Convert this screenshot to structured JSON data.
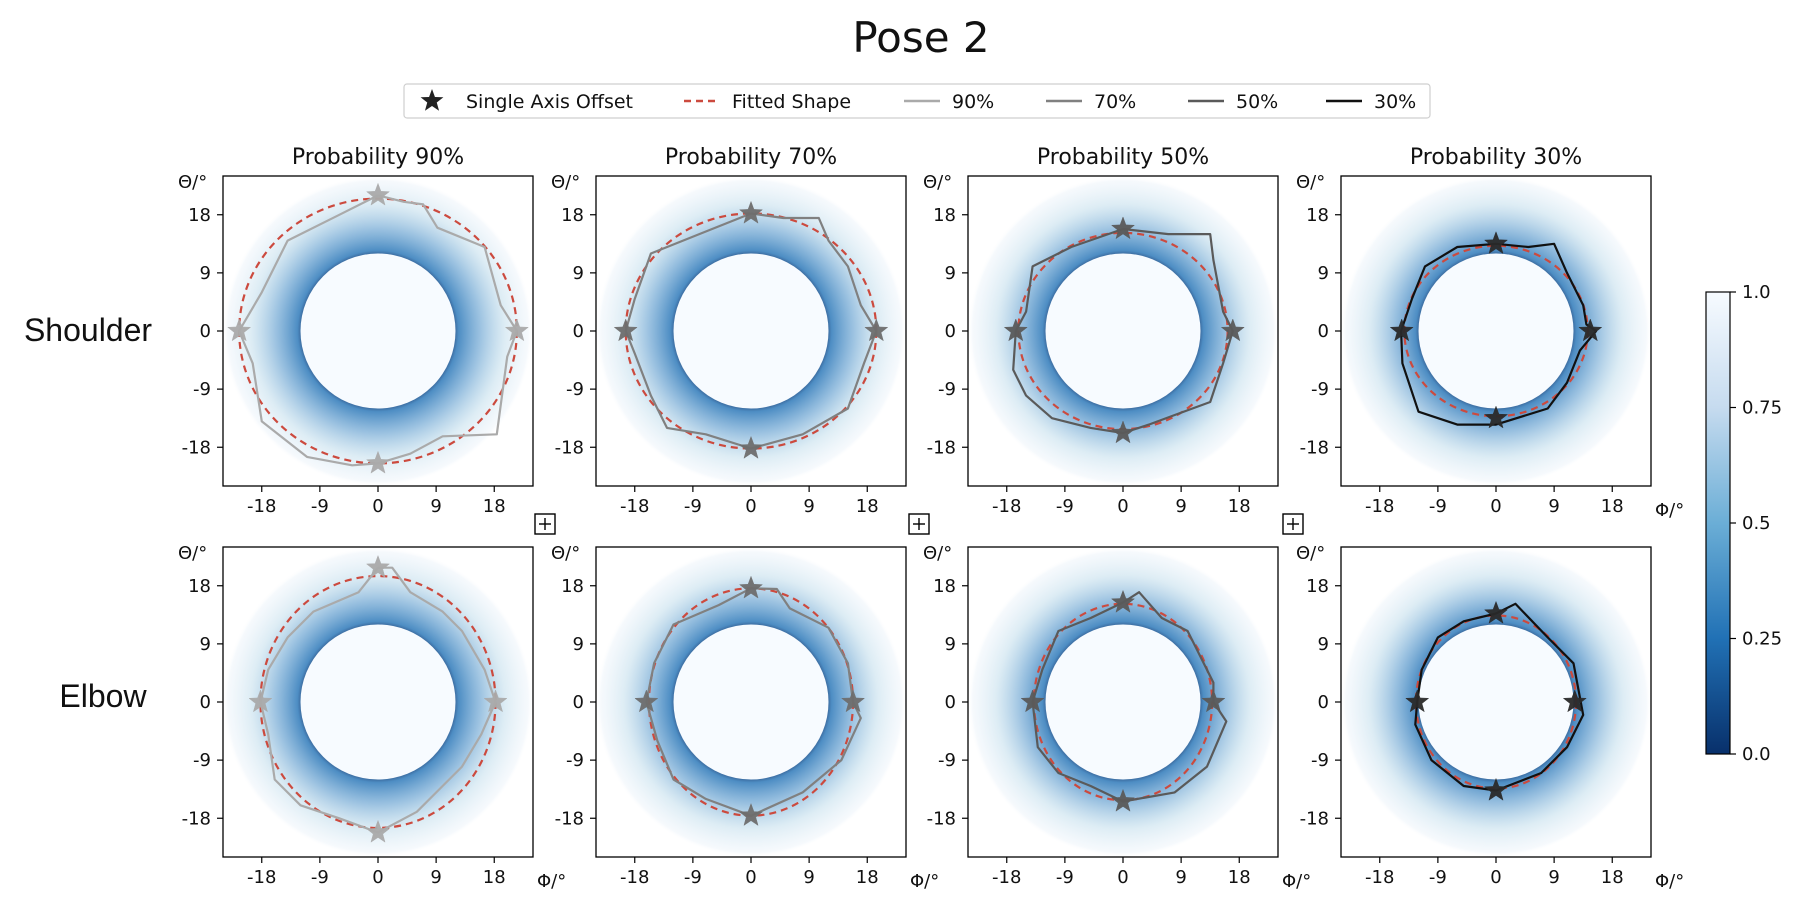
{
  "chart_data": {
    "type": "heatmap",
    "title": "Pose 2",
    "legend": {
      "placement": "top-center",
      "entries": [
        {
          "label": "Single Axis Offset",
          "kind": "star"
        },
        {
          "label": "Fitted Shape",
          "kind": "dashed",
          "color": "#cc4a3e"
        },
        {
          "label": "90%",
          "kind": "line",
          "color": "#aaaaaa"
        },
        {
          "label": "70%",
          "kind": "line",
          "color": "#808080"
        },
        {
          "label": "50%",
          "kind": "line",
          "color": "#5a5a5a"
        },
        {
          "label": "30%",
          "kind": "line",
          "color": "#111111"
        }
      ]
    },
    "rows": [
      "Shoulder",
      "Elbow"
    ],
    "columns": [
      "Probability 90%",
      "Probability 70%",
      "Probability 50%",
      "Probability 30%"
    ],
    "xlabel": "Φ/°",
    "ylabel": "Θ/°",
    "ticks": [
      -18,
      -9,
      0,
      9,
      18
    ],
    "tick_labels": [
      "-18",
      "-9",
      "0",
      "9",
      "18"
    ],
    "xlim": [
      -24,
      24
    ],
    "ylim": [
      -24,
      24
    ],
    "inner_radius": 12,
    "outer_radius": 24,
    "colorbar": {
      "ticks": [
        0.0,
        0.25,
        0.5,
        0.75,
        1.0
      ],
      "tick_labels": [
        "0.0",
        "0.25",
        "0.5",
        "0.75",
        "1.0"
      ],
      "cmap": [
        "#08306b",
        "#2171b5",
        "#6baed6",
        "#c6dbef",
        "#f7fbff"
      ]
    },
    "panels": [
      {
        "row": "Shoulder",
        "col": "Probability 90%",
        "contour_color": "#aaaaaa",
        "star_color": "#aaaaaa",
        "offsets": {
          "up": 21,
          "down": -20.5,
          "left": -21.5,
          "right": 21.5
        },
        "fitted": {
          "rx": 21.5,
          "ry": 20.5
        },
        "contour": [
          [
            0,
            21
          ],
          [
            4,
            20
          ],
          [
            7,
            19.6
          ],
          [
            9.2,
            16
          ],
          [
            16.5,
            13
          ],
          [
            19,
            4
          ],
          [
            21.5,
            0
          ],
          [
            20,
            -4
          ],
          [
            18.4,
            -16
          ],
          [
            10,
            -16.3
          ],
          [
            5,
            -19
          ],
          [
            0,
            -20.5
          ],
          [
            -4,
            -20.8
          ],
          [
            -11,
            -19.5
          ],
          [
            -18,
            -14
          ],
          [
            -19.4,
            -5
          ],
          [
            -21.5,
            0
          ],
          [
            -18,
            6
          ],
          [
            -14,
            14
          ],
          [
            -6,
            18
          ],
          [
            0,
            21
          ]
        ]
      },
      {
        "row": "Shoulder",
        "col": "Probability 70%",
        "contour_color": "#808080",
        "star_color": "#6e6e6e",
        "offsets": {
          "up": 18.2,
          "down": -18.2,
          "left": -19.4,
          "right": 19.4
        },
        "fitted": {
          "rx": 19.4,
          "ry": 18.2
        },
        "contour": [
          [
            0,
            18.2
          ],
          [
            5,
            17.5
          ],
          [
            10.5,
            17.5
          ],
          [
            12,
            14
          ],
          [
            15,
            10
          ],
          [
            17,
            4
          ],
          [
            19.4,
            0
          ],
          [
            17.5,
            -5
          ],
          [
            15,
            -12
          ],
          [
            8,
            -16
          ],
          [
            0,
            -18.2
          ],
          [
            -7,
            -16
          ],
          [
            -13,
            -15
          ],
          [
            -15.5,
            -10
          ],
          [
            -18,
            -3.5
          ],
          [
            -19.4,
            0
          ],
          [
            -18,
            5
          ],
          [
            -15.5,
            12
          ],
          [
            -8,
            15
          ],
          [
            0,
            18.2
          ]
        ]
      },
      {
        "row": "Shoulder",
        "col": "Probability 50%",
        "contour_color": "#5a5a5a",
        "star_color": "#5a5a5a",
        "offsets": {
          "up": 15.8,
          "down": -15.8,
          "left": -16.6,
          "right": 17
        },
        "fitted": {
          "rx": 16.2,
          "ry": 15.2
        },
        "contour": [
          [
            0,
            15.8
          ],
          [
            7,
            15
          ],
          [
            13.5,
            15
          ],
          [
            14,
            11
          ],
          [
            15.5,
            3
          ],
          [
            17,
            0
          ],
          [
            15.5,
            -5
          ],
          [
            13.5,
            -11
          ],
          [
            8,
            -13
          ],
          [
            4,
            -14.5
          ],
          [
            0,
            -15.8
          ],
          [
            -5,
            -15
          ],
          [
            -11,
            -13.5
          ],
          [
            -15,
            -10
          ],
          [
            -17,
            -6
          ],
          [
            -16.6,
            0
          ],
          [
            -15,
            3
          ],
          [
            -14,
            10
          ],
          [
            -8,
            13
          ],
          [
            0,
            15.8
          ]
        ]
      },
      {
        "row": "Shoulder",
        "col": "Probability 30%",
        "contour_color": "#111111",
        "star_color": "#2a2a2a",
        "offsets": {
          "up": 13.5,
          "down": -13.5,
          "left": -14.6,
          "right": 14.6
        },
        "fitted": {
          "rx": 14.2,
          "ry": 13.2
        },
        "contour": [
          [
            0,
            13.5
          ],
          [
            5,
            13
          ],
          [
            9,
            13.5
          ],
          [
            11,
            9
          ],
          [
            13.5,
            4
          ],
          [
            14,
            1
          ],
          [
            15.5,
            0
          ],
          [
            13,
            -3
          ],
          [
            11,
            -8
          ],
          [
            8,
            -12
          ],
          [
            0,
            -14.5
          ],
          [
            -6,
            -14.5
          ],
          [
            -12,
            -12.5
          ],
          [
            -14.5,
            -5
          ],
          [
            -14.7,
            0
          ],
          [
            -13,
            5
          ],
          [
            -11,
            10
          ],
          [
            -6,
            13
          ],
          [
            0,
            13.5
          ]
        ]
      },
      {
        "row": "Elbow",
        "col": "Probability 90%",
        "contour_color": "#aaaaaa",
        "star_color": "#aaaaaa",
        "offsets": {
          "up": 20.8,
          "down": -20.2,
          "left": -18.2,
          "right": 18.2
        },
        "fitted": {
          "rx": 18.2,
          "ry": 19.5
        },
        "contour": [
          [
            0,
            20.8
          ],
          [
            2.2,
            20.8
          ],
          [
            5,
            17
          ],
          [
            10,
            14
          ],
          [
            13,
            11
          ],
          [
            16.5,
            5
          ],
          [
            18.2,
            0
          ],
          [
            16,
            -5
          ],
          [
            13,
            -10
          ],
          [
            10,
            -13
          ],
          [
            6,
            -17
          ],
          [
            0,
            -20.2
          ],
          [
            -6,
            -18
          ],
          [
            -12,
            -16
          ],
          [
            -16,
            -12
          ],
          [
            -17,
            -5
          ],
          [
            -18.2,
            0
          ],
          [
            -17,
            5
          ],
          [
            -14,
            10
          ],
          [
            -10,
            14
          ],
          [
            -3,
            17
          ],
          [
            0,
            20.8
          ]
        ]
      },
      {
        "row": "Elbow",
        "col": "Probability 70%",
        "contour_color": "#808080",
        "star_color": "#6e6e6e",
        "offsets": {
          "up": 17.6,
          "down": -17.6,
          "left": -16.2,
          "right": 15.8
        },
        "fitted": {
          "rx": 15.8,
          "ry": 17.6
        },
        "contour": [
          [
            0,
            17.6
          ],
          [
            4,
            17.5
          ],
          [
            6,
            14.5
          ],
          [
            12,
            11.5
          ],
          [
            15,
            6
          ],
          [
            15.8,
            0
          ],
          [
            17,
            -2.5
          ],
          [
            14,
            -9
          ],
          [
            8,
            -14
          ],
          [
            0,
            -17.6
          ],
          [
            -7,
            -15
          ],
          [
            -12,
            -12
          ],
          [
            -14.5,
            -6
          ],
          [
            -16.2,
            0
          ],
          [
            -15,
            6
          ],
          [
            -12,
            12
          ],
          [
            -5,
            15
          ],
          [
            0,
            17.6
          ]
        ]
      },
      {
        "row": "Elbow",
        "col": "Probability 50%",
        "contour_color": "#5a5a5a",
        "star_color": "#5a5a5a",
        "offsets": {
          "up": 15.4,
          "down": -15.4,
          "left": -14,
          "right": 14
        },
        "fitted": {
          "rx": 13.8,
          "ry": 15.2
        },
        "contour": [
          [
            0,
            15.4
          ],
          [
            2.5,
            17
          ],
          [
            6,
            13
          ],
          [
            10,
            11
          ],
          [
            14,
            3
          ],
          [
            14,
            0
          ],
          [
            16,
            -3
          ],
          [
            13,
            -10
          ],
          [
            8,
            -14
          ],
          [
            0,
            -15.4
          ],
          [
            -5,
            -13
          ],
          [
            -10,
            -11
          ],
          [
            -13.2,
            -7
          ],
          [
            -14,
            0
          ],
          [
            -12.5,
            5
          ],
          [
            -10,
            11
          ],
          [
            -5,
            13
          ],
          [
            0,
            15.4
          ]
        ]
      },
      {
        "row": "Elbow",
        "col": "Probability 30%",
        "contour_color": "#111111",
        "star_color": "#2a2a2a",
        "offsets": {
          "up": 13.7,
          "down": -13.7,
          "left": -12.2,
          "right": 12.2
        },
        "fitted": {
          "rx": 12.4,
          "ry": 13.4
        },
        "contour": [
          [
            0,
            13.7
          ],
          [
            3,
            15.2
          ],
          [
            8,
            10
          ],
          [
            12,
            6
          ],
          [
            13.5,
            -2
          ],
          [
            11,
            -7
          ],
          [
            7,
            -11
          ],
          [
            0,
            -13.7
          ],
          [
            -5,
            -13
          ],
          [
            -10,
            -9
          ],
          [
            -12.5,
            -3.5
          ],
          [
            -12.2,
            0
          ],
          [
            -11.5,
            5
          ],
          [
            -9,
            10
          ],
          [
            -5,
            12.5
          ],
          [
            0,
            13.7
          ]
        ]
      }
    ]
  }
}
